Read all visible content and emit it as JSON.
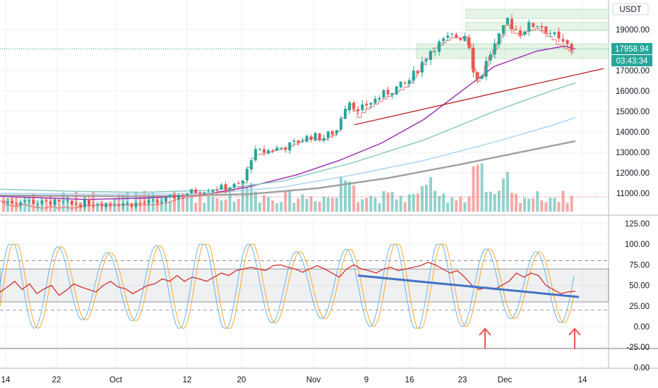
{
  "currency_label": "USDT",
  "price_badge": {
    "value": "17958.94",
    "timer": "03:43:34",
    "color": "#26a69a"
  },
  "colors": {
    "up": "#26a69a",
    "down": "#ef5350",
    "grid": "#eef1f5",
    "support_line": "#b71c1c",
    "stoch_trend": "#4472c4",
    "arrow": "#ef5350"
  },
  "x_labels": [
    "14",
    "22",
    "Oct",
    "12",
    "20",
    "Nov",
    "9",
    "16",
    "23",
    "Dec",
    "14"
  ],
  "icons": [
    "arrow-up-icon",
    "arrow-up-icon"
  ],
  "chart_data": [
    {
      "type": "candlestick",
      "title": "",
      "ylabel": "",
      "y_ticks": [
        "19000.00",
        "18000.00",
        "17000.00",
        "16000.00",
        "15000.00",
        "14000.00",
        "13000.00",
        "12000.00",
        "11000.00"
      ],
      "ylim": [
        10400,
        20000
      ],
      "last_price": 17958.94,
      "ma_series": [
        {
          "color": "#9c27b0",
          "points": [
            [
              0,
              10850
            ],
            [
              60,
              10780
            ],
            [
              120,
              10700
            ],
            [
              200,
              10760
            ],
            [
              280,
              10900
            ],
            [
              350,
              11300
            ],
            [
              420,
              11900
            ],
            [
              480,
              12600
            ],
            [
              540,
              13450
            ],
            [
              600,
              14600
            ],
            [
              650,
              15900
            ],
            [
              700,
              17200
            ],
            [
              760,
              17950
            ],
            [
              800,
              18200
            ],
            [
              815,
              18050
            ]
          ]
        },
        {
          "color": "#81c7c0",
          "points": [
            [
              0,
              11200
            ],
            [
              100,
              11100
            ],
            [
              200,
              11050
            ],
            [
              300,
              11150
            ],
            [
              400,
              11600
            ],
            [
              500,
              12500
            ],
            [
              600,
              13600
            ],
            [
              700,
              15000
            ],
            [
              780,
              16000
            ],
            [
              815,
              16400
            ]
          ]
        },
        {
          "color": "#a9d2f5",
          "points": [
            [
              0,
              11000
            ],
            [
              150,
              10950
            ],
            [
              300,
              11000
            ],
            [
              400,
              11300
            ],
            [
              500,
              11900
            ],
            [
              600,
              12600
            ],
            [
              700,
              13500
            ],
            [
              780,
              14300
            ],
            [
              815,
              14700
            ]
          ]
        },
        {
          "color": "#9e9e9e",
          "points": [
            [
              0,
              10900
            ],
            [
              200,
              10850
            ],
            [
              350,
              10950
            ],
            [
              450,
              11250
            ],
            [
              550,
              11750
            ],
            [
              650,
              12400
            ],
            [
              750,
              13100
            ],
            [
              815,
              13550
            ]
          ]
        }
      ],
      "support_line": [
        [
          502,
          14350
        ],
        [
          855,
          17100
        ]
      ],
      "zones": [
        [
          18950,
          19350
        ],
        [
          19550,
          20000
        ],
        [
          17600,
          18300
        ]
      ]
    },
    {
      "type": "line",
      "title": "",
      "ylabel": "",
      "y_ticks": [
        "125.00",
        "100.00",
        "75.00",
        "50.00",
        "25.00",
        "0.00",
        "-25.00"
      ],
      "ylim": [
        -27,
        131
      ],
      "band": [
        30,
        70
      ],
      "dashed_levels": [
        80,
        20
      ],
      "series": [
        {
          "color": "#d32f2f",
          "values": [
            42,
            48,
            55,
            45,
            52,
            40,
            46,
            50,
            38,
            44,
            52,
            48,
            45,
            42,
            50,
            55,
            48,
            46,
            40,
            45,
            50,
            52,
            58,
            55,
            62,
            55,
            60,
            58,
            55,
            60,
            65,
            62,
            68,
            70,
            72,
            70,
            68,
            74,
            75,
            72,
            70,
            66,
            70,
            74,
            70,
            65,
            60,
            70,
            75,
            70,
            68,
            65,
            70,
            72,
            68,
            70,
            72,
            74,
            78,
            75,
            70,
            65,
            68,
            60,
            50,
            45,
            48,
            45,
            50,
            55,
            65,
            60,
            65,
            62,
            50,
            45,
            40,
            42,
            43
          ]
        }
      ],
      "trendline": [
        [
          9.0,
          62
        ],
        [
          16.7,
          36
        ]
      ],
      "x_labels": [
        "14",
        "22",
        "Oct",
        "12",
        "20",
        "Nov",
        "9",
        "16",
        "23",
        "Dec",
        "14"
      ]
    }
  ]
}
